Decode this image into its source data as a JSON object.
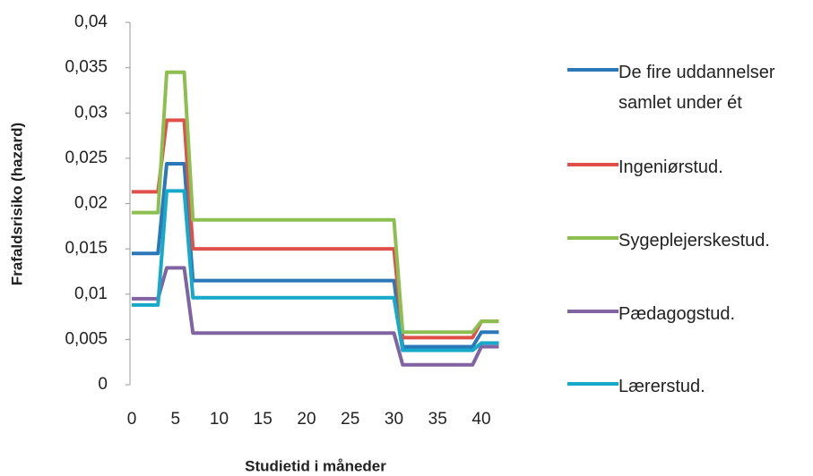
{
  "chart_data": {
    "type": "line",
    "x_label": "Studietid i måneder",
    "y_label": "Frafaldsrisiko (hazard)",
    "x": [
      0,
      3,
      4,
      6,
      7,
      30,
      31,
      39,
      40,
      42
    ],
    "series": [
      {
        "name": "De fire uddannelser samlet under ét",
        "color": "#2a78b8",
        "values": [
          0.0145,
          0.0145,
          0.0244,
          0.0244,
          0.0115,
          0.0115,
          0.0042,
          0.0042,
          0.0058,
          0.0058
        ]
      },
      {
        "name": "Ingeniørstud.",
        "color": "#e0504a",
        "values": [
          0.0213,
          0.0213,
          0.0292,
          0.0292,
          0.015,
          0.015,
          0.0052,
          0.0052,
          0.007,
          0.007
        ]
      },
      {
        "name": "Sygeplejerskestud.",
        "color": "#8cbf4f",
        "values": [
          0.019,
          0.019,
          0.0345,
          0.0345,
          0.0182,
          0.0182,
          0.0058,
          0.0058,
          0.007,
          0.007
        ]
      },
      {
        "name": "Pædagogstud.",
        "color": "#8064a2",
        "values": [
          0.0095,
          0.0095,
          0.0129,
          0.0129,
          0.0057,
          0.0057,
          0.0022,
          0.0022,
          0.0042,
          0.0042
        ]
      },
      {
        "name": "Lærerstud.",
        "color": "#17a9c9",
        "values": [
          0.0088,
          0.0088,
          0.0214,
          0.0214,
          0.0096,
          0.0096,
          0.0038,
          0.0038,
          0.0046,
          0.0046
        ]
      }
    ],
    "xlim": [
      0,
      44
    ],
    "xticks": [
      0,
      5,
      10,
      15,
      20,
      25,
      30,
      35,
      40
    ],
    "ylim": [
      0,
      0.04
    ],
    "yticks": [
      0,
      {
        "value": 0.005,
        "label": "0,005"
      },
      {
        "value": 0.01,
        "label": "0,01"
      },
      {
        "value": 0.015,
        "label": "0,015"
      },
      {
        "value": 0.02,
        "label": "0,02"
      },
      {
        "value": 0.025,
        "label": "0,025"
      },
      {
        "value": 0.03,
        "label": "0,03"
      },
      {
        "value": 0.035,
        "label": "0,035"
      },
      {
        "value": 0.04,
        "label": "0,04"
      }
    ],
    "legend": "right"
  }
}
